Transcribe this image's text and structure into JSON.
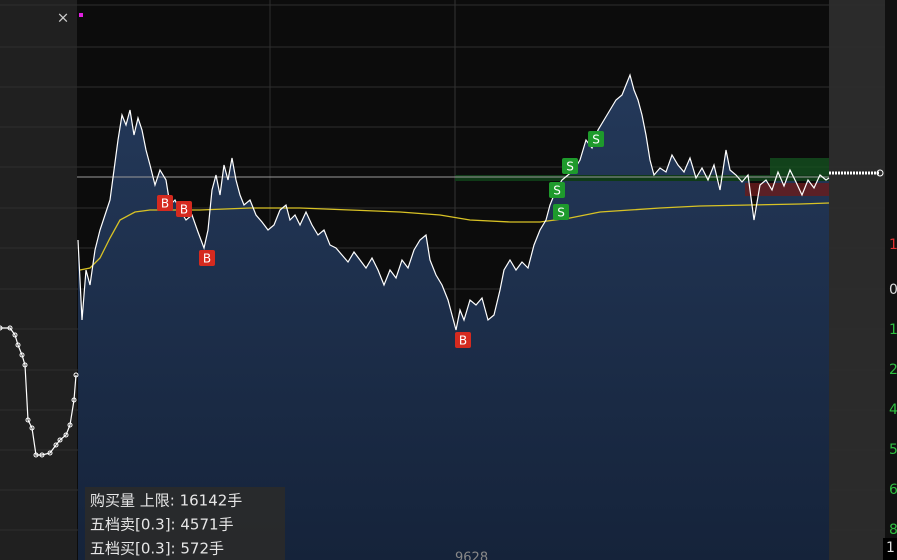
{
  "close_button": "×",
  "markers": {
    "buy": [
      "B",
      "B",
      "B",
      "B"
    ],
    "sell": [
      "S",
      "S",
      "S",
      "S"
    ]
  },
  "info_panel": {
    "lines": [
      "购买量 上限: 16142手",
      "五档卖[0.3]: 4571手",
      "五档买[0.3]: 572手"
    ]
  },
  "time_label": "9628",
  "axis_labels": [
    "1",
    "0",
    "1",
    "2",
    "4",
    "5",
    "6",
    "8"
  ],
  "corner_label": "1"
}
